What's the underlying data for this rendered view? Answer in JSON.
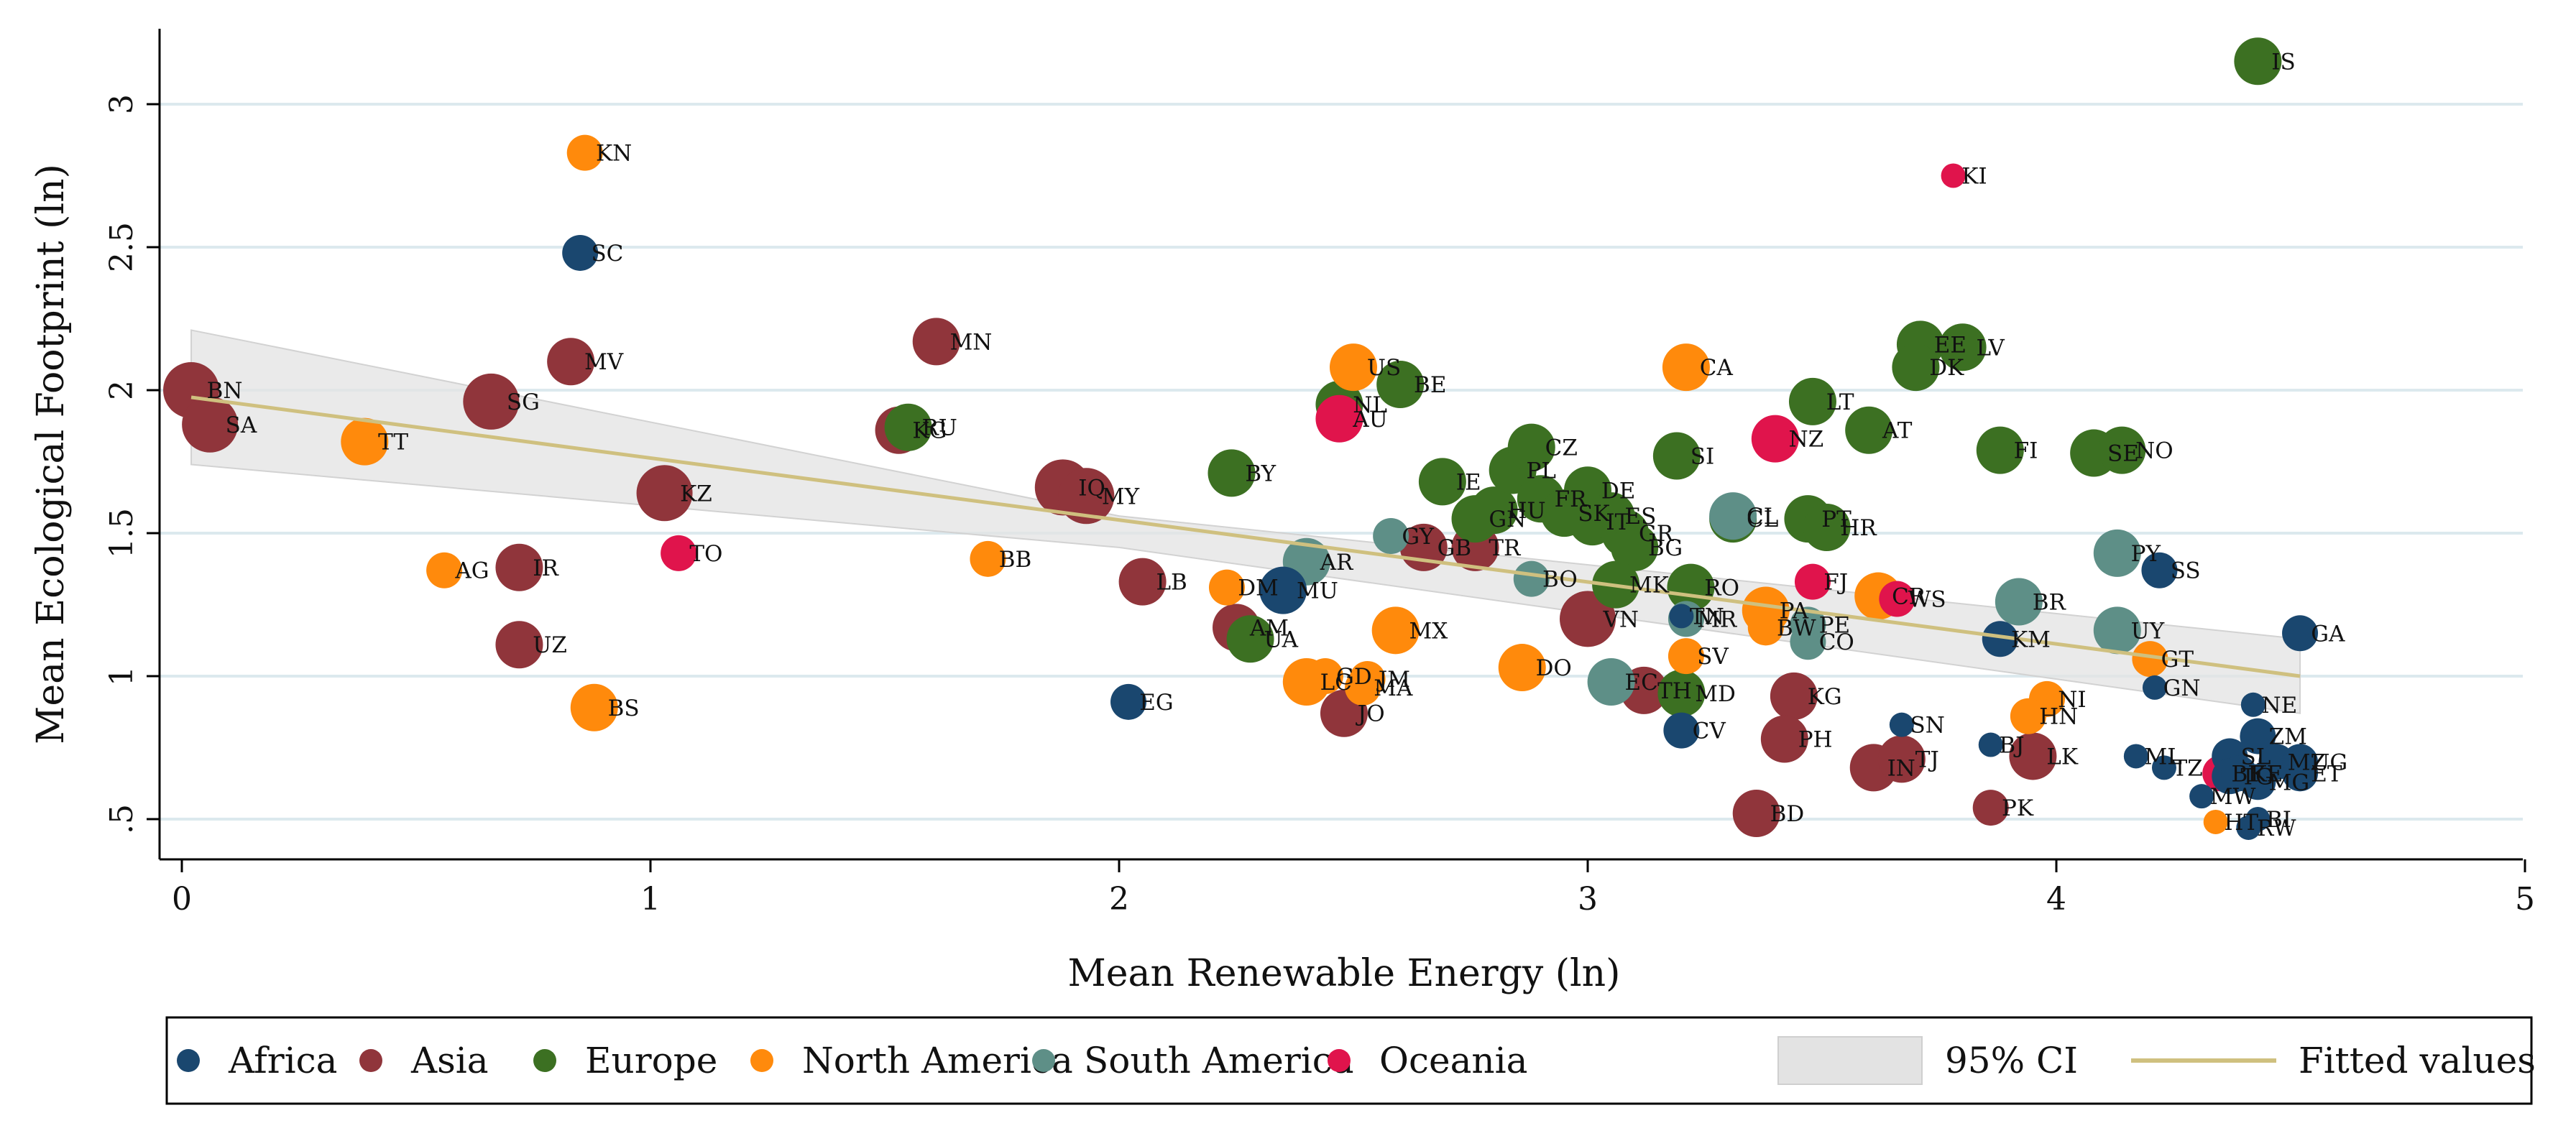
{
  "chart_data": {
    "type": "scatter",
    "title": "",
    "xlabel": "Mean Renewable Energy (ln)",
    "ylabel": "Mean Ecological Footprint (ln)",
    "xlim": [
      -0.05,
      5.05
    ],
    "ylim": [
      0.43,
      3.25
    ],
    "x_ticks": [
      0,
      1,
      2,
      3,
      4,
      5
    ],
    "x_tick_labels": [
      "0",
      "1",
      "2",
      "3",
      "4",
      "5"
    ],
    "y_ticks": [
      0.5,
      1,
      1.5,
      2,
      2.5,
      3
    ],
    "y_tick_labels": [
      ".5",
      "1",
      "1.5",
      "2",
      "2.5",
      "3"
    ],
    "grid": true,
    "colors": {
      "Africa": "#1a476f",
      "Asia": "#90353b",
      "Europe": "#3c7022",
      "North America": "#ff8a0c",
      "South America": "#5e8f87",
      "Oceania": "#e0144c",
      "fit": "#cfc07f",
      "ci": "#e3e3e3"
    },
    "fit": {
      "x": [
        0.02,
        4.52
      ],
      "y": [
        1.975,
        1.0
      ]
    },
    "ci": {
      "x": [
        0.02,
        2.0,
        4.52
      ],
      "upper": [
        2.21,
        1.56,
        1.13
      ],
      "lower": [
        1.74,
        1.45,
        0.87
      ]
    },
    "legend": {
      "position": "bottom",
      "entries": [
        "Africa",
        "Asia",
        "Europe",
        "North America",
        "South America",
        "Oceania",
        "95% CI",
        "Fitted values"
      ]
    },
    "points": [
      {
        "label": "BN",
        "region": "Asia",
        "x": 0.02,
        "y": 2.0,
        "size": 3
      },
      {
        "label": "SA",
        "region": "Asia",
        "x": 0.06,
        "y": 1.88,
        "size": 3
      },
      {
        "label": "SG",
        "region": "Asia",
        "x": 0.66,
        "y": 1.96,
        "size": 3
      },
      {
        "label": "MV",
        "region": "Asia",
        "x": 0.83,
        "y": 2.1,
        "size": 2
      },
      {
        "label": "KZ",
        "region": "Asia",
        "x": 1.03,
        "y": 1.64,
        "size": 3
      },
      {
        "label": "IR",
        "region": "Asia",
        "x": 0.72,
        "y": 1.38,
        "size": 2
      },
      {
        "label": "UZ",
        "region": "Asia",
        "x": 0.72,
        "y": 1.11,
        "size": 2
      },
      {
        "label": "MN",
        "region": "Asia",
        "x": 1.61,
        "y": 2.17,
        "size": 2
      },
      {
        "label": "KG",
        "region": "Asia",
        "x": 1.53,
        "y": 1.86,
        "size": 2
      },
      {
        "label": "IQ",
        "region": "Asia",
        "x": 1.88,
        "y": 1.66,
        "size": 3
      },
      {
        "label": "MY",
        "region": "Asia",
        "x": 1.93,
        "y": 1.63,
        "size": 3
      },
      {
        "label": "LB",
        "region": "Asia",
        "x": 2.05,
        "y": 1.33,
        "size": 2
      },
      {
        "label": "AM",
        "region": "Asia",
        "x": 2.25,
        "y": 1.17,
        "size": 2
      },
      {
        "label": "JO",
        "region": "Asia",
        "x": 2.48,
        "y": 0.87,
        "size": 2
      },
      {
        "label": "TR",
        "region": "Asia",
        "x": 2.76,
        "y": 1.45,
        "size": 2
      },
      {
        "label": "VN",
        "region": "Asia",
        "x": 3.0,
        "y": 1.2,
        "size": 3
      },
      {
        "label": "TH",
        "region": "Asia",
        "x": 3.12,
        "y": 0.95,
        "size": 2
      },
      {
        "label": "KG",
        "region": "Asia",
        "x": 3.44,
        "y": 0.93,
        "size": 2
      },
      {
        "label": "PH",
        "region": "Asia",
        "x": 3.42,
        "y": 0.78,
        "size": 2
      },
      {
        "label": "BD",
        "region": "Asia",
        "x": 3.36,
        "y": 0.52,
        "size": 2
      },
      {
        "label": "IN",
        "region": "Asia",
        "x": 3.61,
        "y": 0.68,
        "size": 2
      },
      {
        "label": "TJ",
        "region": "Asia",
        "x": 3.67,
        "y": 0.71,
        "size": 2
      },
      {
        "label": "PK",
        "region": "Asia",
        "x": 3.86,
        "y": 0.54,
        "size": 1
      },
      {
        "label": "LK",
        "region": "Asia",
        "x": 3.95,
        "y": 0.72,
        "size": 2
      },
      {
        "label": "GB",
        "region": "Asia",
        "x": 2.65,
        "y": 1.45,
        "size": 2
      },
      {
        "label": "RU",
        "region": "Europe",
        "x": 1.55,
        "y": 1.87,
        "size": 2
      },
      {
        "label": "BY",
        "region": "Europe",
        "x": 2.24,
        "y": 1.71,
        "size": 2
      },
      {
        "label": "UA",
        "region": "Europe",
        "x": 2.28,
        "y": 1.13,
        "size": 2
      },
      {
        "label": "BE",
        "region": "Europe",
        "x": 2.6,
        "y": 2.02,
        "size": 2
      },
      {
        "label": "NL",
        "region": "Europe",
        "x": 2.47,
        "y": 1.95,
        "size": 2
      },
      {
        "label": "IE",
        "region": "Europe",
        "x": 2.69,
        "y": 1.68,
        "size": 2
      },
      {
        "label": "GN",
        "region": "Europe",
        "x": 2.76,
        "y": 1.55,
        "size": 2
      },
      {
        "label": "HU",
        "region": "Europe",
        "x": 2.8,
        "y": 1.58,
        "size": 2
      },
      {
        "label": "PL",
        "region": "Europe",
        "x": 2.84,
        "y": 1.72,
        "size": 2
      },
      {
        "label": "CZ",
        "region": "Europe",
        "x": 2.88,
        "y": 1.8,
        "size": 2
      },
      {
        "label": "FR",
        "region": "Europe",
        "x": 2.9,
        "y": 1.62,
        "size": 2
      },
      {
        "label": "SK",
        "region": "Europe",
        "x": 2.95,
        "y": 1.57,
        "size": 2
      },
      {
        "label": "DE",
        "region": "Europe",
        "x": 3.0,
        "y": 1.65,
        "size": 2
      },
      {
        "label": "IT",
        "region": "Europe",
        "x": 3.01,
        "y": 1.54,
        "size": 2
      },
      {
        "label": "ES",
        "region": "Europe",
        "x": 3.05,
        "y": 1.56,
        "size": 2
      },
      {
        "label": "GR",
        "region": "Europe",
        "x": 3.08,
        "y": 1.5,
        "size": 2
      },
      {
        "label": "BG",
        "region": "Europe",
        "x": 3.1,
        "y": 1.45,
        "size": 2
      },
      {
        "label": "MK",
        "region": "Europe",
        "x": 3.06,
        "y": 1.32,
        "size": 2
      },
      {
        "label": "SI",
        "region": "Europe",
        "x": 3.19,
        "y": 1.77,
        "size": 2
      },
      {
        "label": "RO",
        "region": "Europe",
        "x": 3.22,
        "y": 1.31,
        "size": 2
      },
      {
        "label": "MD",
        "region": "Europe",
        "x": 3.2,
        "y": 0.94,
        "size": 2
      },
      {
        "label": "LT",
        "region": "Europe",
        "x": 3.48,
        "y": 1.96,
        "size": 2
      },
      {
        "label": "PT",
        "region": "Europe",
        "x": 3.47,
        "y": 1.55,
        "size": 2
      },
      {
        "label": "HR",
        "region": "Europe",
        "x": 3.51,
        "y": 1.52,
        "size": 2
      },
      {
        "label": "AT",
        "region": "Europe",
        "x": 3.6,
        "y": 1.86,
        "size": 2
      },
      {
        "label": "EE",
        "region": "Europe",
        "x": 3.71,
        "y": 2.16,
        "size": 2
      },
      {
        "label": "DK",
        "region": "Europe",
        "x": 3.7,
        "y": 2.08,
        "size": 2
      },
      {
        "label": "LV",
        "region": "Europe",
        "x": 3.8,
        "y": 2.15,
        "size": 2
      },
      {
        "label": "FI",
        "region": "Europe",
        "x": 3.88,
        "y": 1.79,
        "size": 2
      },
      {
        "label": "SE",
        "region": "Europe",
        "x": 4.08,
        "y": 1.78,
        "size": 2
      },
      {
        "label": "NO",
        "region": "Europe",
        "x": 4.14,
        "y": 1.79,
        "size": 2
      },
      {
        "label": "IS",
        "region": "Europe",
        "x": 4.43,
        "y": 3.15,
        "size": 2
      },
      {
        "label": "CL",
        "region": "Europe",
        "x": 3.31,
        "y": 1.55,
        "size": 2
      },
      {
        "label": "KN",
        "region": "North America",
        "x": 0.86,
        "y": 2.83,
        "size": 1
      },
      {
        "label": "TT",
        "region": "North America",
        "x": 0.39,
        "y": 1.82,
        "size": 2
      },
      {
        "label": "AG",
        "region": "North America",
        "x": 0.56,
        "y": 1.37,
        "size": 1
      },
      {
        "label": "BS",
        "region": "North America",
        "x": 0.88,
        "y": 0.89,
        "size": 2
      },
      {
        "label": "BB",
        "region": "North America",
        "x": 1.72,
        "y": 1.41,
        "size": 1
      },
      {
        "label": "DM",
        "region": "North America",
        "x": 2.23,
        "y": 1.31,
        "size": 1
      },
      {
        "label": "LC",
        "region": "North America",
        "x": 2.4,
        "y": 0.98,
        "size": 2
      },
      {
        "label": "GD",
        "region": "North America",
        "x": 2.44,
        "y": 1.0,
        "size": 1
      },
      {
        "label": "MA",
        "region": "North America",
        "x": 2.52,
        "y": 0.96,
        "size": 1
      },
      {
        "label": "JM",
        "region": "North America",
        "x": 2.53,
        "y": 0.99,
        "size": 1
      },
      {
        "label": "US",
        "region": "North America",
        "x": 2.5,
        "y": 2.08,
        "size": 2
      },
      {
        "label": "MX",
        "region": "North America",
        "x": 2.59,
        "y": 1.16,
        "size": 2
      },
      {
        "label": "DO",
        "region": "North America",
        "x": 2.86,
        "y": 1.03,
        "size": 2
      },
      {
        "label": "CA",
        "region": "North America",
        "x": 3.21,
        "y": 2.08,
        "size": 2
      },
      {
        "label": "SV",
        "region": "North America",
        "x": 3.21,
        "y": 1.07,
        "size": 1
      },
      {
        "label": "BW",
        "region": "North America",
        "x": 3.38,
        "y": 1.17,
        "size": 1
      },
      {
        "label": "PA",
        "region": "North America",
        "x": 3.38,
        "y": 1.23,
        "size": 2
      },
      {
        "label": "CR",
        "region": "North America",
        "x": 3.62,
        "y": 1.28,
        "size": 2
      },
      {
        "label": "NI",
        "region": "North America",
        "x": 3.98,
        "y": 0.92,
        "size": 1
      },
      {
        "label": "HN",
        "region": "North America",
        "x": 3.94,
        "y": 0.86,
        "size": 1
      },
      {
        "label": "GT",
        "region": "North America",
        "x": 4.2,
        "y": 1.06,
        "size": 1
      },
      {
        "label": "HT",
        "region": "North America",
        "x": 4.34,
        "y": 0.49,
        "size": 0
      },
      {
        "label": "GY",
        "region": "South America",
        "x": 2.58,
        "y": 1.49,
        "size": 1
      },
      {
        "label": "AR",
        "region": "South America",
        "x": 2.4,
        "y": 1.4,
        "size": 2
      },
      {
        "label": "BO",
        "region": "South America",
        "x": 2.88,
        "y": 1.34,
        "size": 1
      },
      {
        "label": "EC",
        "region": "South America",
        "x": 3.05,
        "y": 0.98,
        "size": 2
      },
      {
        "label": "CO",
        "region": "South America",
        "x": 3.47,
        "y": 1.12,
        "size": 1
      },
      {
        "label": "CL",
        "region": "South America",
        "x": 3.31,
        "y": 1.56,
        "size": 2
      },
      {
        "label": "PE",
        "region": "South America",
        "x": 3.47,
        "y": 1.18,
        "size": 1
      },
      {
        "label": "BR",
        "region": "South America",
        "x": 3.92,
        "y": 1.26,
        "size": 2
      },
      {
        "label": "PY",
        "region": "South America",
        "x": 4.13,
        "y": 1.43,
        "size": 2
      },
      {
        "label": "UY",
        "region": "South America",
        "x": 4.13,
        "y": 1.16,
        "size": 2
      },
      {
        "label": "MR",
        "region": "South America",
        "x": 3.21,
        "y": 1.2,
        "size": 1
      },
      {
        "label": "AU",
        "region": "Oceania",
        "x": 2.47,
        "y": 1.9,
        "size": 2
      },
      {
        "label": "TO",
        "region": "Oceania",
        "x": 1.06,
        "y": 1.43,
        "size": 1
      },
      {
        "label": "NZ",
        "region": "Oceania",
        "x": 3.4,
        "y": 1.83,
        "size": 2
      },
      {
        "label": "FJ",
        "region": "Oceania",
        "x": 3.48,
        "y": 1.33,
        "size": 1
      },
      {
        "label": "WS",
        "region": "Oceania",
        "x": 3.66,
        "y": 1.27,
        "size": 1
      },
      {
        "label": "KI",
        "region": "Oceania",
        "x": 3.78,
        "y": 2.75,
        "size": 0
      },
      {
        "label": "BF",
        "region": "Oceania",
        "x": 4.35,
        "y": 0.66,
        "size": 1
      },
      {
        "label": "SC",
        "region": "Africa",
        "x": 0.85,
        "y": 2.48,
        "size": 1
      },
      {
        "label": "EG",
        "region": "Africa",
        "x": 2.02,
        "y": 0.91,
        "size": 1
      },
      {
        "label": "MU",
        "region": "Africa",
        "x": 2.35,
        "y": 1.3,
        "size": 2
      },
      {
        "label": "TN",
        "region": "Africa",
        "x": 3.2,
        "y": 1.21,
        "size": 0
      },
      {
        "label": "CV",
        "region": "Africa",
        "x": 3.2,
        "y": 0.81,
        "size": 1
      },
      {
        "label": "SN",
        "region": "Africa",
        "x": 3.67,
        "y": 0.83,
        "size": 0
      },
      {
        "label": "BJ",
        "region": "Africa",
        "x": 3.86,
        "y": 0.76,
        "size": 0
      },
      {
        "label": "KM",
        "region": "Africa",
        "x": 3.88,
        "y": 1.13,
        "size": 1
      },
      {
        "label": "SS",
        "region": "Africa",
        "x": 4.22,
        "y": 1.37,
        "size": 1
      },
      {
        "label": "GN",
        "region": "Africa",
        "x": 4.21,
        "y": 0.96,
        "size": 0
      },
      {
        "label": "ML",
        "region": "Africa",
        "x": 4.17,
        "y": 0.72,
        "size": 0
      },
      {
        "label": "GA",
        "region": "Africa",
        "x": 4.52,
        "y": 1.15,
        "size": 1
      },
      {
        "label": "NE",
        "region": "Africa",
        "x": 4.42,
        "y": 0.9,
        "size": 0
      },
      {
        "label": "ZM",
        "region": "Africa",
        "x": 4.43,
        "y": 0.79,
        "size": 1
      },
      {
        "label": "SL",
        "region": "Africa",
        "x": 4.37,
        "y": 0.72,
        "size": 1
      },
      {
        "label": "MZ",
        "region": "Africa",
        "x": 4.47,
        "y": 0.7,
        "size": 1
      },
      {
        "label": "UG",
        "region": "Africa",
        "x": 4.52,
        "y": 0.7,
        "size": 1
      },
      {
        "label": "TG",
        "region": "Africa",
        "x": 4.37,
        "y": 0.65,
        "size": 1
      },
      {
        "label": "MG",
        "region": "Africa",
        "x": 4.43,
        "y": 0.63,
        "size": 1
      },
      {
        "label": "ET",
        "region": "Africa",
        "x": 4.52,
        "y": 0.66,
        "size": 1
      },
      {
        "label": "KE",
        "region": "Africa",
        "x": 4.39,
        "y": 0.66,
        "size": 1
      },
      {
        "label": "MW",
        "region": "Africa",
        "x": 4.31,
        "y": 0.58,
        "size": 0
      },
      {
        "label": "BI",
        "region": "Africa",
        "x": 4.43,
        "y": 0.5,
        "size": 0
      },
      {
        "label": "RW",
        "region": "Africa",
        "x": 4.41,
        "y": 0.47,
        "size": 0
      },
      {
        "label": "TZ",
        "region": "Africa",
        "x": 4.23,
        "y": 0.68,
        "size": 0
      }
    ]
  }
}
